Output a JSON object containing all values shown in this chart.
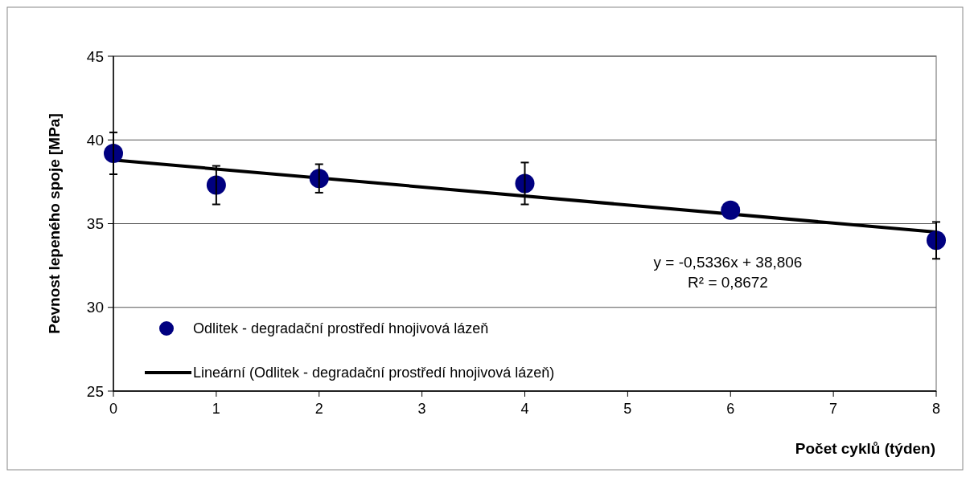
{
  "chart_data": {
    "type": "scatter",
    "xlabel": "Počet cyklů (týden)",
    "ylabel": "Pevnost lepeného spoje [MPa]",
    "xlim": [
      0,
      8
    ],
    "xticks": [
      0,
      1,
      2,
      3,
      4,
      5,
      6,
      7,
      8
    ],
    "ylim": [
      25,
      45
    ],
    "yticks": [
      25,
      30,
      35,
      40,
      45
    ],
    "grid": "y",
    "legend": "bottom left",
    "series": [
      {
        "name": "Odlitek - degradační prostředí hnojivová lázeň",
        "marker": "circle",
        "color": "#000080",
        "x": [
          0,
          1,
          2,
          4,
          6,
          8
        ],
        "values": [
          39.2,
          37.3,
          37.7,
          37.4,
          35.8,
          34.0
        ],
        "errors": [
          1.25,
          1.15,
          0.85,
          1.25,
          null,
          1.1
        ]
      },
      {
        "name": "Lineární (Odlitek - degradační prostředí hnojivová lázeň)",
        "type": "line",
        "color": "#000000",
        "line_style": "solid",
        "marker": "none",
        "x": [
          0,
          8
        ],
        "values": [
          38.8,
          34.5
        ]
      }
    ],
    "annotations": [
      "y = -0,5336x + 38,806",
      "R² = 0,8672"
    ]
  }
}
